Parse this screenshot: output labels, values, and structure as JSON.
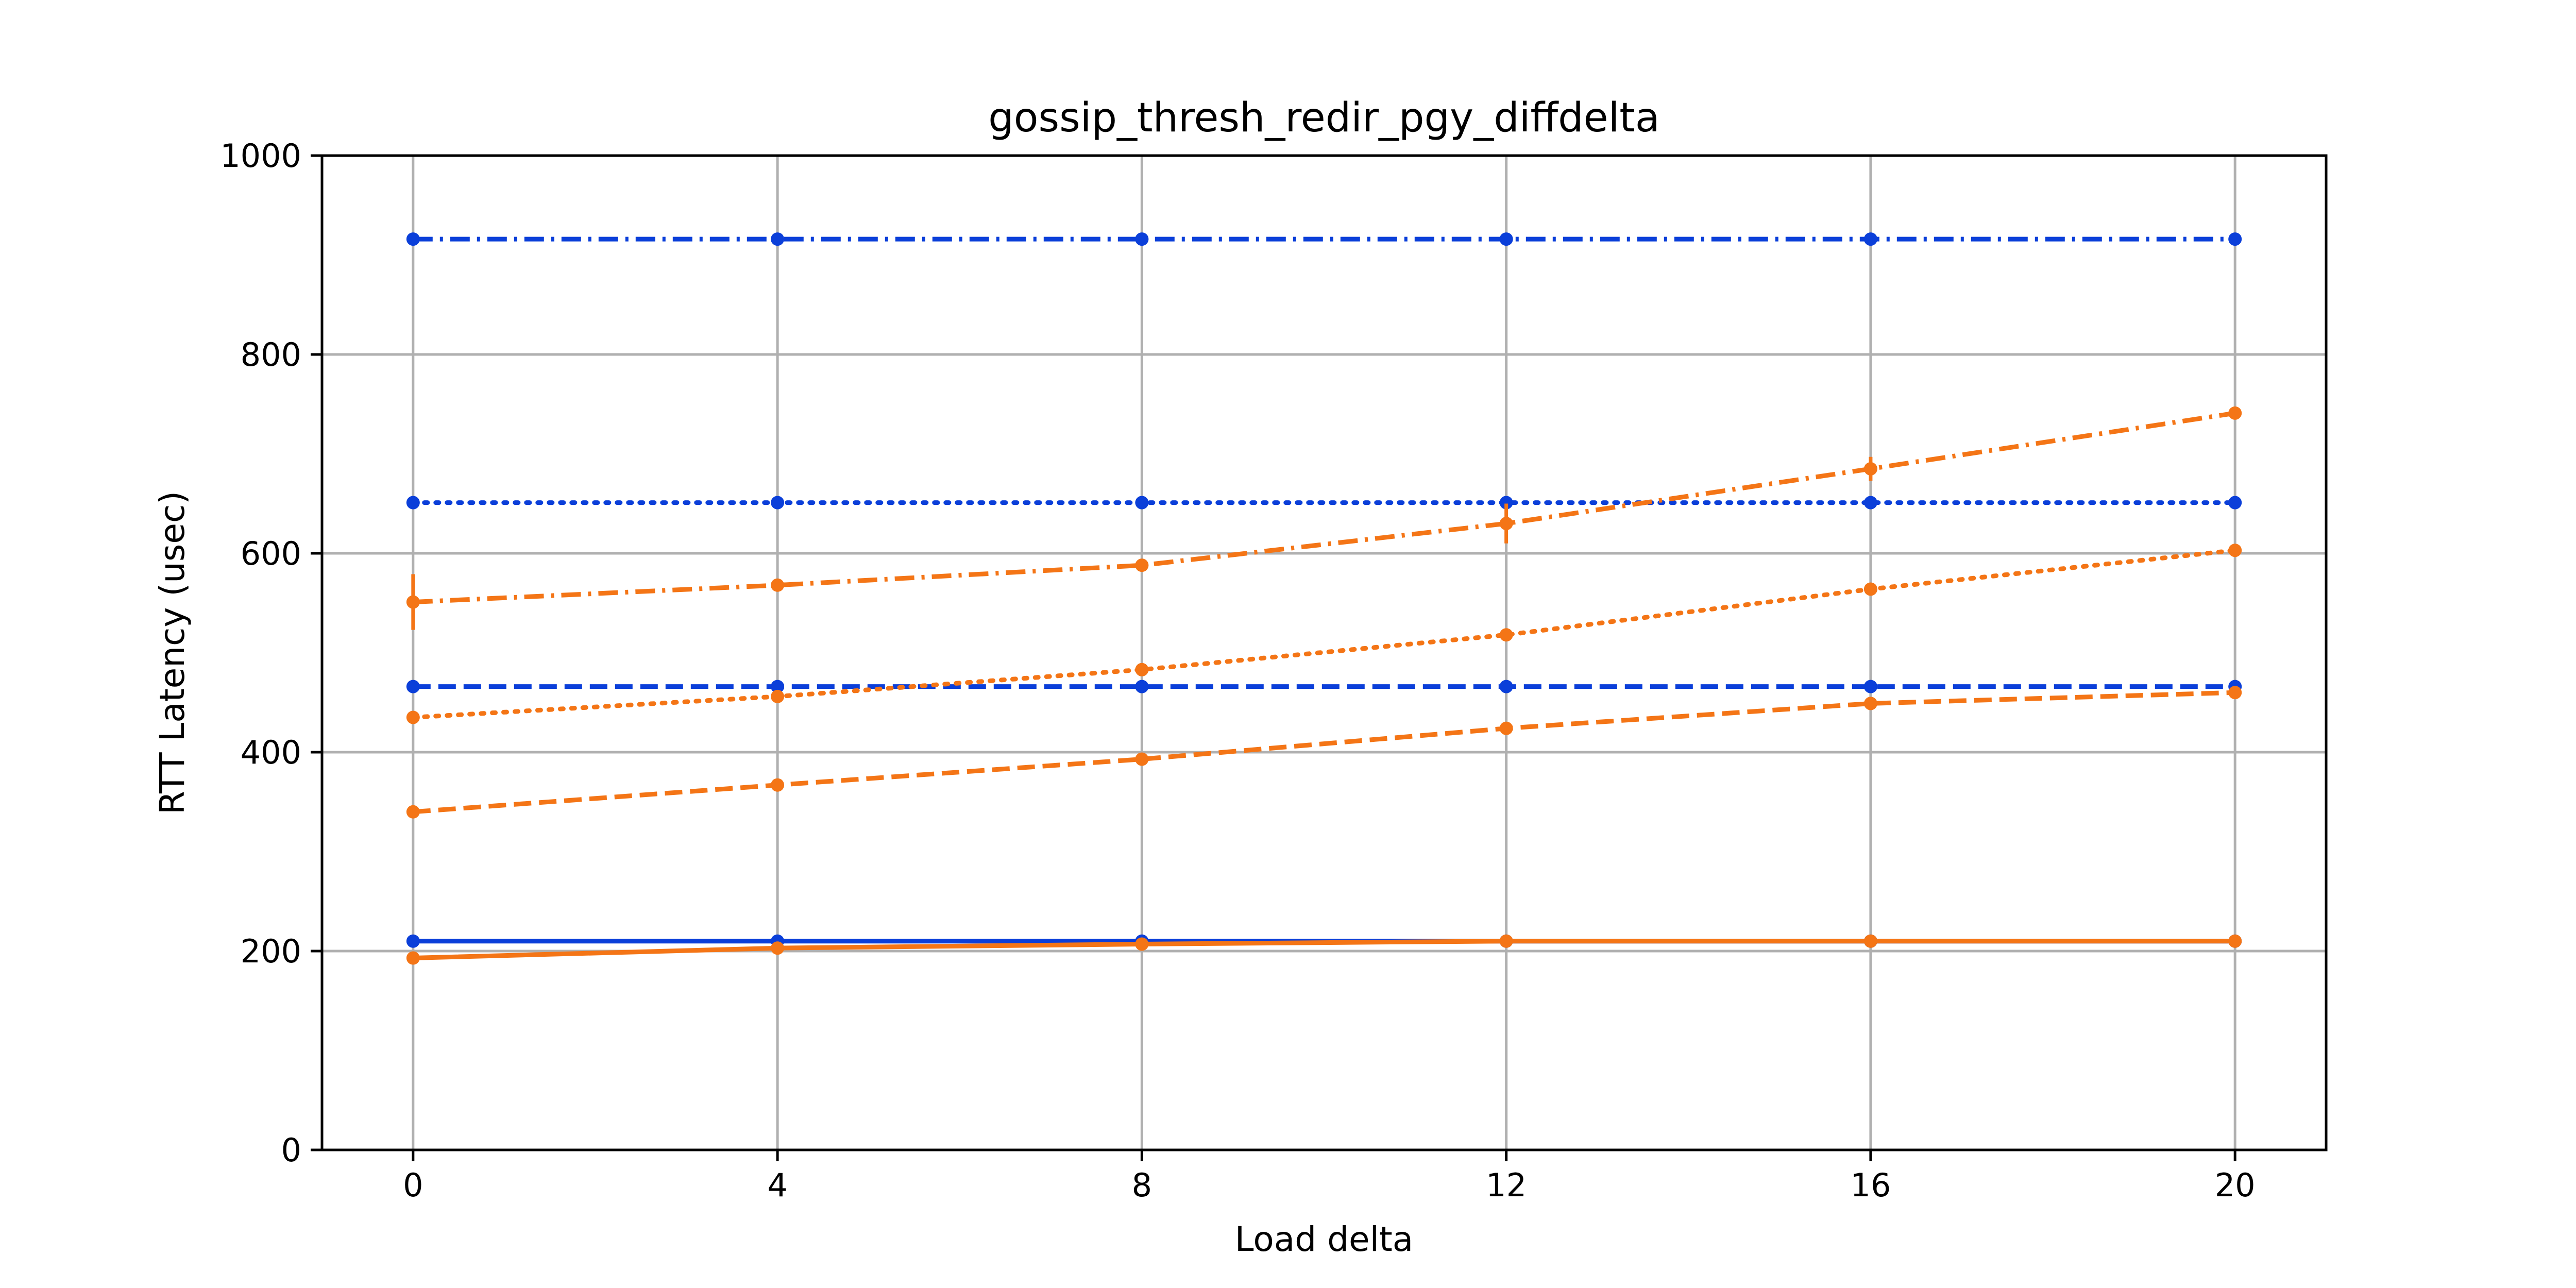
{
  "chart_data": {
    "type": "line",
    "title": "gossip_thresh_redir_pgy_diffdelta",
    "xlabel": "Load delta",
    "ylabel": "RTT Latency (usec)",
    "xlim": [
      -1.0,
      21.0
    ],
    "ylim": [
      0,
      1000
    ],
    "xticks": [
      0,
      4,
      8,
      12,
      16,
      20
    ],
    "yticks": [
      0,
      200,
      400,
      600,
      800,
      1000
    ],
    "grid": true,
    "legend": "none",
    "x": [
      0,
      4,
      8,
      12,
      16,
      20
    ],
    "colors": {
      "blue": "#0b3fd9",
      "orange": "#f47516"
    },
    "series": [
      {
        "color": "blue",
        "style": "dashdot",
        "values": [
          916,
          916,
          916,
          916,
          916,
          916
        ]
      },
      {
        "color": "blue",
        "style": "dotted",
        "values": [
          651,
          651,
          651,
          651,
          651,
          651
        ]
      },
      {
        "color": "blue",
        "style": "dashed",
        "values": [
          466,
          466,
          466,
          466,
          466,
          466
        ]
      },
      {
        "color": "blue",
        "style": "solid",
        "values": [
          210,
          210,
          210,
          210,
          210,
          210
        ]
      },
      {
        "color": "orange",
        "style": "dashdot",
        "values": [
          551,
          568,
          588,
          630,
          685,
          741
        ],
        "errors": [
          28,
          4,
          5,
          20,
          12,
          6
        ]
      },
      {
        "color": "orange",
        "style": "dotted",
        "values": [
          435,
          456,
          483,
          518,
          564,
          603
        ],
        "errors": [
          6,
          4,
          4,
          5,
          5,
          4
        ]
      },
      {
        "color": "orange",
        "style": "dashed",
        "values": [
          340,
          367,
          393,
          424,
          449,
          460
        ],
        "errors": [
          4,
          3,
          3,
          4,
          4,
          3
        ]
      },
      {
        "color": "orange",
        "style": "solid",
        "values": [
          193,
          203,
          207,
          210,
          210,
          210
        ],
        "errors": [
          3,
          3,
          3,
          3,
          3,
          3
        ]
      }
    ]
  }
}
